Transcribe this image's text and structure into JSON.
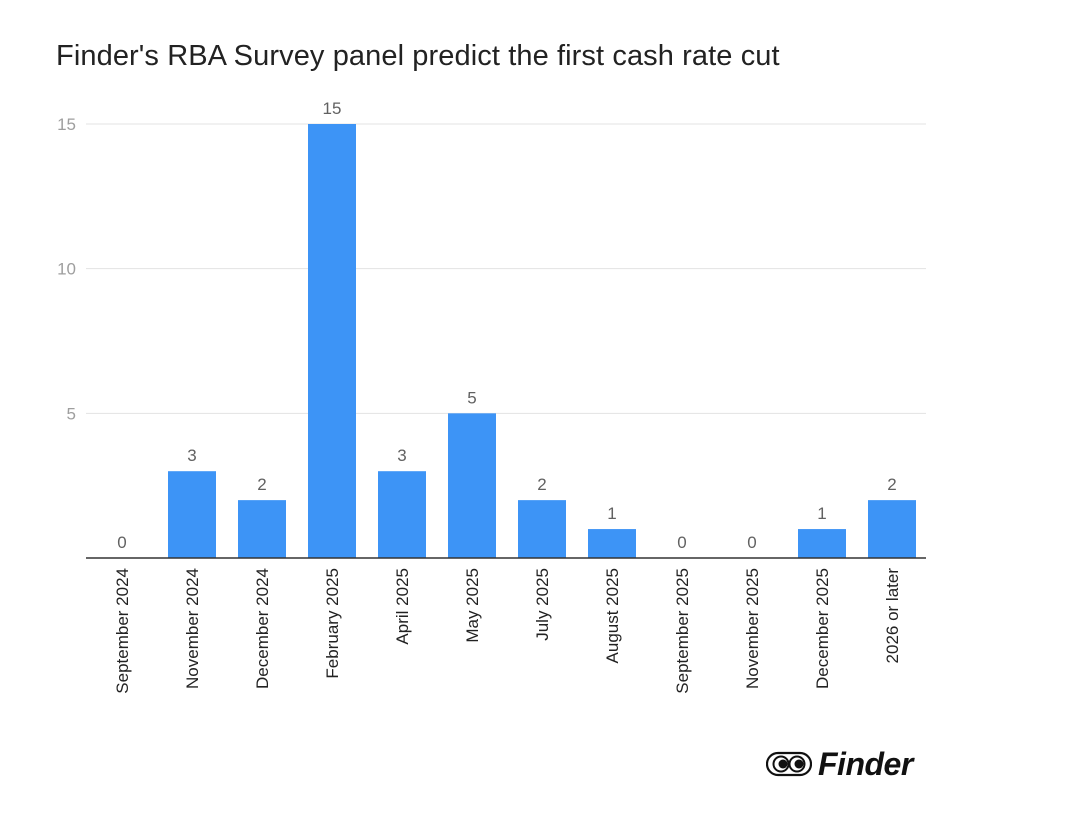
{
  "chart_data": {
    "type": "bar",
    "title": "Finder's RBA Survey panel predict the first cash rate cut",
    "xlabel": "",
    "ylabel": "",
    "ylim": [
      0,
      15
    ],
    "yticks": [
      5,
      10,
      15
    ],
    "grid": true,
    "bar_color": "#3d94f6",
    "categories": [
      "September 2024",
      "November 2024",
      "December 2024",
      "February 2025",
      "April 2025",
      "May 2025",
      "July 2025",
      "August 2025",
      "September 2025",
      "November 2025",
      "December 2025",
      "2026 or later"
    ],
    "values": [
      0,
      3,
      2,
      15,
      3,
      5,
      2,
      1,
      0,
      0,
      1,
      2
    ]
  },
  "brand": {
    "name": "Finder",
    "logo_icon": "finder-eyes-icon"
  }
}
